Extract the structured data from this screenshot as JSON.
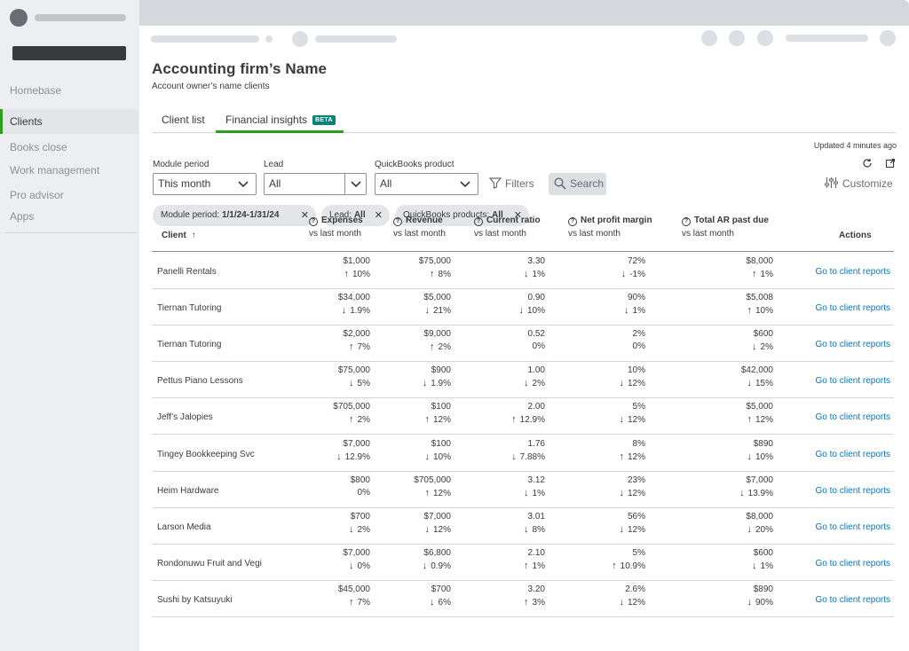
{
  "sidebar": {
    "items": [
      {
        "label": "Homebase",
        "active": false
      },
      {
        "label": "Clients",
        "active": true
      },
      {
        "label": "Books close",
        "active": false
      },
      {
        "label": "Work management",
        "active": false
      },
      {
        "label": "Pro advisor",
        "active": false
      },
      {
        "label": "Apps",
        "active": false
      }
    ]
  },
  "header": {
    "title": "Accounting firm’s Name",
    "subtitle": "Account owner’s name clients"
  },
  "tabs": [
    {
      "label": "Client list",
      "active": false
    },
    {
      "label": "Financial insights",
      "badge": "BETA",
      "active": true
    }
  ],
  "updated": "Updated 4 minutes ago",
  "filters": {
    "module_period": {
      "label": "Module period",
      "value": "This month"
    },
    "lead": {
      "label": "Lead",
      "value": "All"
    },
    "product": {
      "label": "QuickBooks product",
      "value": "All"
    },
    "filters_label": "Filters",
    "search_label": "Search",
    "customize_label": "Customize"
  },
  "chips": [
    {
      "prefix": "Module period: ",
      "value": "1/1/24-1/31/24"
    },
    {
      "prefix": "Lead: ",
      "value": "All"
    },
    {
      "prefix": "QuickBooks products: ",
      "value": "All"
    }
  ],
  "table": {
    "columns": {
      "client": "Client",
      "expenses": "Expenses",
      "revenue": "Revenue",
      "current_ratio": "Current ratio",
      "net_profit_margin": "Net profit margin",
      "total_ar": "Total AR past due",
      "actions": "Actions",
      "sub": "vs last month"
    },
    "link_label": "Go to client reports",
    "rows": [
      {
        "client": "Panelli Rentals",
        "exp": "$1,000",
        "exp_d": "10%",
        "exp_dir": "up",
        "rev": "$75,000",
        "rev_d": "8%",
        "rev_dir": "up",
        "cr": "3.30",
        "cr_d": "1%",
        "cr_dir": "down",
        "npm": "72%",
        "npm_d": "-1%",
        "npm_dir": "down",
        "ar": "$8,000",
        "ar_d": "1%",
        "ar_dir": "up"
      },
      {
        "client": "Tiernan Tutoring",
        "exp": "$34,000",
        "exp_d": "1.9%",
        "exp_dir": "down",
        "rev": "$5,000",
        "rev_d": "21%",
        "rev_dir": "down",
        "cr": "0.90",
        "cr_d": "10%",
        "cr_dir": "down",
        "npm": "90%",
        "npm_d": "1%",
        "npm_dir": "down",
        "ar": "$5,008",
        "ar_d": "10%",
        "ar_dir": "up"
      },
      {
        "client": "Tiernan Tutoring",
        "exp": "$2,000",
        "exp_d": "7%",
        "exp_dir": "up",
        "rev": "$9,000",
        "rev_d": "2%",
        "rev_dir": "up",
        "cr": "0.52",
        "cr_d": "0%",
        "cr_dir": "none",
        "npm": "2%",
        "npm_d": "0%",
        "npm_dir": "none",
        "ar": "$600",
        "ar_d": "2%",
        "ar_dir": "down"
      },
      {
        "client": "Pettus Piano Lessons",
        "exp": "$75,000",
        "exp_d": "5%",
        "exp_dir": "down",
        "rev": "$900",
        "rev_d": "1.9%",
        "rev_dir": "down",
        "cr": "1.00",
        "cr_d": "2%",
        "cr_dir": "down",
        "npm": "10%",
        "npm_d": "12%",
        "npm_dir": "down",
        "ar": "$42,000",
        "ar_d": "15%",
        "ar_dir": "down"
      },
      {
        "client": "Jeff’s Jalopies",
        "exp": "$705,000",
        "exp_d": "2%",
        "exp_dir": "up",
        "rev": "$100",
        "rev_d": "12%",
        "rev_dir": "up",
        "cr": "2.00",
        "cr_d": "12.9%",
        "cr_dir": "up",
        "npm": "5%",
        "npm_d": "12%",
        "npm_dir": "down",
        "ar": "$5,000",
        "ar_d": "12%",
        "ar_dir": "up"
      },
      {
        "client": "Tingey Bookkeeping Svc",
        "exp": "$7,000",
        "exp_d": "12.9%",
        "exp_dir": "down",
        "rev": "$100",
        "rev_d": "10%",
        "rev_dir": "down",
        "cr": "1.76",
        "cr_d": "7.88%",
        "cr_dir": "down",
        "npm": "8%",
        "npm_d": "12%",
        "npm_dir": "up",
        "ar": "$890",
        "ar_d": "10%",
        "ar_dir": "down"
      },
      {
        "client": "Heim Hardware",
        "exp": "$800",
        "exp_d": "0%",
        "exp_dir": "none",
        "rev": "$705,000",
        "rev_d": "12%",
        "rev_dir": "up",
        "cr": "3.12",
        "cr_d": "1%",
        "cr_dir": "down",
        "npm": "23%",
        "npm_d": "12%",
        "npm_dir": "down",
        "ar": "$7,000",
        "ar_d": "13.9%",
        "ar_dir": "down"
      },
      {
        "client": "Larson Media",
        "exp": "$700",
        "exp_d": "2%",
        "exp_dir": "down",
        "rev": "$7,000",
        "rev_d": "12%",
        "rev_dir": "down",
        "cr": "3.01",
        "cr_d": "8%",
        "cr_dir": "down",
        "npm": "56%",
        "npm_d": "12%",
        "npm_dir": "down",
        "ar": "$8,000",
        "ar_d": "20%",
        "ar_dir": "down"
      },
      {
        "client": "Rondonuwu Fruit and Vegi",
        "exp": "$7,000",
        "exp_d": "0%",
        "exp_dir": "down",
        "rev": "$6,800",
        "rev_d": "0.9%",
        "rev_dir": "down",
        "cr": "2.10",
        "cr_d": "1%",
        "cr_dir": "up",
        "npm": "5%",
        "npm_d": "10.9%",
        "npm_dir": "up",
        "ar": "$600",
        "ar_d": "1%",
        "ar_dir": "down"
      },
      {
        "client": "Sushi by Katsuyuki",
        "exp": "$45,000",
        "exp_d": "7%",
        "exp_dir": "up",
        "rev": "$700",
        "rev_d": "6%",
        "rev_dir": "down",
        "cr": "3.20",
        "cr_d": "3%",
        "cr_dir": "up",
        "npm": "2.6%",
        "npm_d": "12%",
        "npm_dir": "down",
        "ar": "$890",
        "ar_d": "90%",
        "ar_dir": "down"
      }
    ]
  }
}
